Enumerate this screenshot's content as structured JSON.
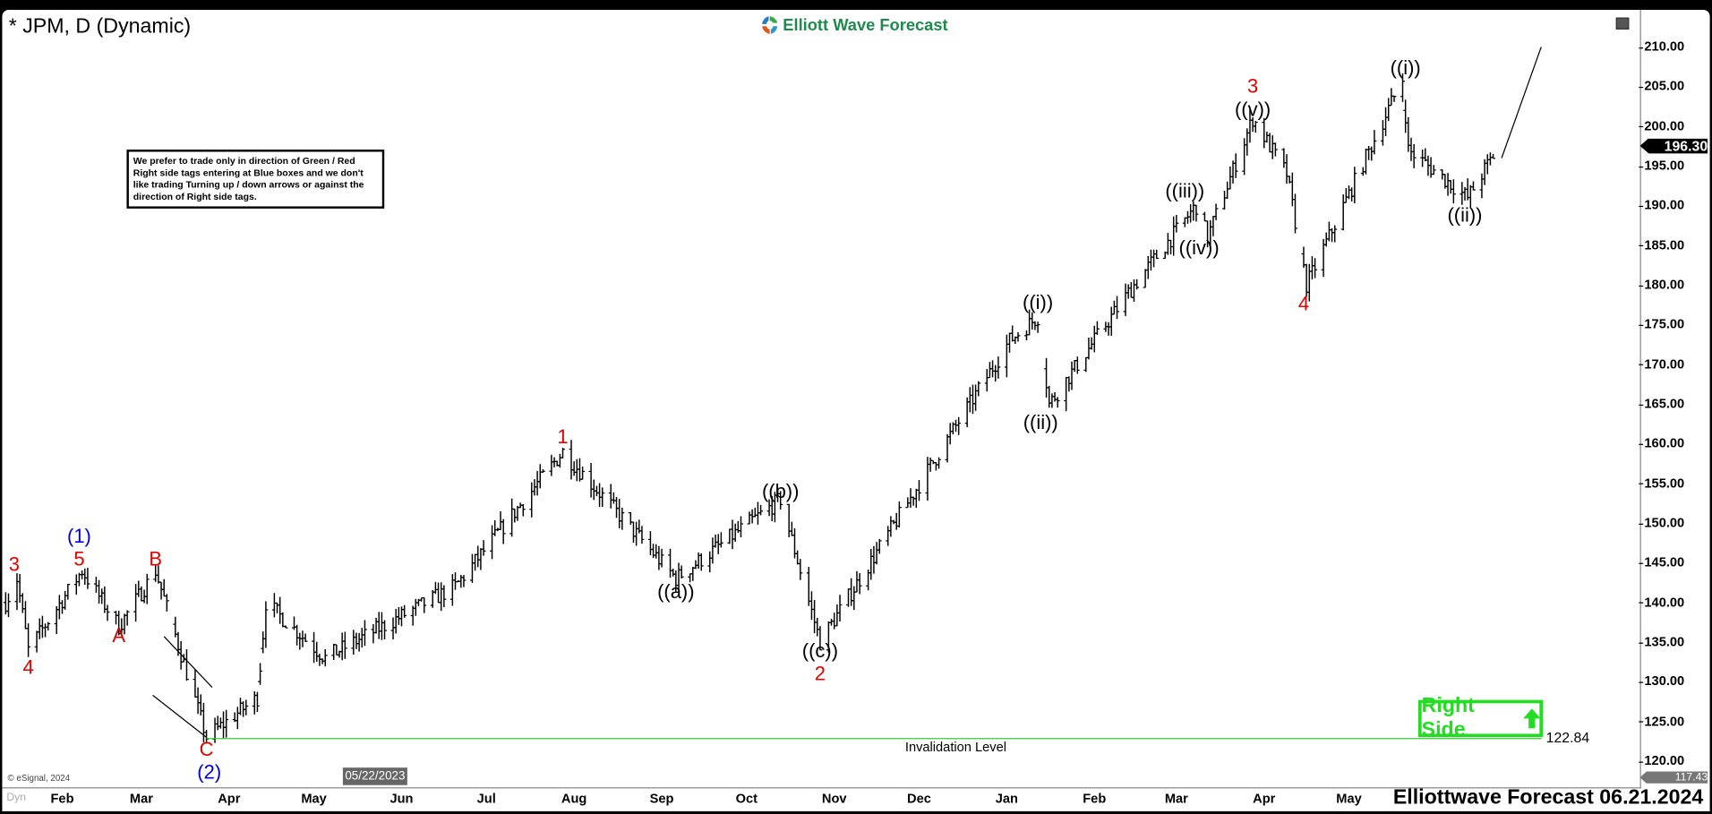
{
  "header": {
    "title": "* JPM, D (Dynamic)",
    "logo_text": "Elliott Wave Forecast"
  },
  "note": "We prefer to trade only in direction of Green / Red Right side tags entering at Blue boxes and we don't like trading Turning up / down arrows or against the direction of Right side tags.",
  "right_side": {
    "label": "Right Side",
    "icon": "arrow-up-icon",
    "color": "#22dd22"
  },
  "invalidation": {
    "label": "Invalidation Level",
    "value": "122.84",
    "price": 122.84,
    "color": "#33cc33"
  },
  "last_price": "196.30",
  "low_price": "117.43",
  "cursor_date": "05/22/2023",
  "footer": "Elliottwave Forecast 06.21.2024",
  "copyright": "© eSignal, 2024",
  "dyn_label": "Dyn",
  "chart_data": {
    "type": "ohlc-bar",
    "symbol": "JPM",
    "interval": "D",
    "ylim": [
      117.43,
      213
    ],
    "y_ticks": [
      "120.00",
      "125.00",
      "130.00",
      "135.00",
      "140.00",
      "145.00",
      "150.00",
      "155.00",
      "160.00",
      "165.00",
      "170.00",
      "175.00",
      "180.00",
      "185.00",
      "190.00",
      "195.00",
      "200.00",
      "205.00",
      "210.00"
    ],
    "x_ticks": [
      {
        "label": "Feb",
        "date": "2023-02-01"
      },
      {
        "label": "Mar",
        "date": "2023-03-01"
      },
      {
        "label": "Apr",
        "date": "2023-04-01"
      },
      {
        "label": "May",
        "date": "2023-05-01"
      },
      {
        "label": "Jun",
        "date": "2023-06-01"
      },
      {
        "label": "Jul",
        "date": "2023-07-01"
      },
      {
        "label": "Aug",
        "date": "2023-08-01"
      },
      {
        "label": "Sep",
        "date": "2023-09-01"
      },
      {
        "label": "Oct",
        "date": "2023-10-01"
      },
      {
        "label": "Nov",
        "date": "2023-11-01"
      },
      {
        "label": "Dec",
        "date": "2023-12-01"
      },
      {
        "label": "Jan",
        "date": "2024-01-01"
      },
      {
        "label": "Feb",
        "date": "2024-02-01"
      },
      {
        "label": "Mar",
        "date": "2024-03-01"
      },
      {
        "label": "Apr",
        "date": "2024-04-01"
      },
      {
        "label": "May",
        "date": "2024-05-01"
      }
    ],
    "price_path": [
      [
        "2023-01-12",
        140
      ],
      [
        "2023-01-16",
        143
      ],
      [
        "2023-01-20",
        134
      ],
      [
        "2023-02-08",
        144
      ],
      [
        "2023-02-21",
        137
      ],
      [
        "2023-03-06",
        144
      ],
      [
        "2023-03-24",
        123
      ],
      [
        "2023-04-11",
        128
      ],
      [
        "2023-04-14",
        140
      ],
      [
        "2023-05-05",
        133
      ],
      [
        "2023-06-20",
        142
      ],
      [
        "2023-07-28",
        159
      ],
      [
        "2023-09-06",
        143
      ],
      [
        "2023-10-13",
        153
      ],
      [
        "2023-10-27",
        135
      ],
      [
        "2024-01-02",
        173
      ],
      [
        "2024-01-12",
        176
      ],
      [
        "2024-01-16",
        165
      ],
      [
        "2024-02-15",
        180
      ],
      [
        "2024-03-08",
        190
      ],
      [
        "2024-03-12",
        186
      ],
      [
        "2024-03-28",
        201
      ],
      [
        "2024-04-09",
        194
      ],
      [
        "2024-04-12",
        188
      ],
      [
        "2024-04-16",
        180
      ],
      [
        "2024-05-20",
        206
      ],
      [
        "2024-05-22",
        197
      ],
      [
        "2024-06-12",
        191
      ],
      [
        "2024-06-21",
        196.3
      ]
    ],
    "projection": [
      [
        "2024-06-24",
        196
      ],
      [
        "2024-07-08",
        210
      ]
    ],
    "wedge": [
      [
        [
          "2023-03-09",
          135.7
        ],
        [
          "2023-03-26",
          129.3
        ]
      ],
      [
        [
          "2023-03-05",
          128.3
        ],
        [
          "2023-03-24",
          123.0
        ]
      ]
    ],
    "wave_labels": [
      {
        "text": "3",
        "color": "#e00000",
        "date": "2023-01-15",
        "price": 144.8
      },
      {
        "text": "4",
        "color": "#e00000",
        "date": "2023-01-20",
        "price": 131.8
      },
      {
        "text": "(1)",
        "color": "#0000dd",
        "date": "2023-02-07",
        "price": 148.1
      },
      {
        "text": "5",
        "color": "#e00000",
        "date": "2023-02-07",
        "price": 145.6
      },
      {
        "text": "A",
        "color": "#e00000",
        "date": "2023-02-21",
        "price": 135.8
      },
      {
        "text": "B",
        "color": "#e00000",
        "date": "2023-03-06",
        "price": 145.5
      },
      {
        "text": "C",
        "color": "#e00000",
        "date": "2023-03-24",
        "price": 121.2
      },
      {
        "text": "(2)",
        "color": "#0000dd",
        "date": "2023-03-25",
        "price": 118.9
      },
      {
        "text": "1",
        "color": "#e00000",
        "date": "2023-07-28",
        "price": 160.9
      },
      {
        "text": "((a))",
        "color": "#000000",
        "date": "2023-09-06",
        "price": 141.3
      },
      {
        "text": "((b))",
        "color": "#000000",
        "date": "2023-10-13",
        "price": 154.0
      },
      {
        "text": "((c))",
        "color": "#000000",
        "date": "2023-10-27",
        "price": 133.8
      },
      {
        "text": "2",
        "color": "#e00000",
        "date": "2023-10-27",
        "price": 131.1
      },
      {
        "text": "((i))",
        "color": "#000000",
        "date": "2024-01-12",
        "price": 177.8
      },
      {
        "text": "((ii))",
        "color": "#000000",
        "date": "2024-01-13",
        "price": 162.7
      },
      {
        "text": "((iii))",
        "color": "#000000",
        "date": "2024-03-04",
        "price": 191.8
      },
      {
        "text": "((iv))",
        "color": "#000000",
        "date": "2024-03-09",
        "price": 184.7
      },
      {
        "text": "3",
        "color": "#e00000",
        "date": "2024-03-28",
        "price": 204.8
      },
      {
        "text": "((v))",
        "color": "#000000",
        "date": "2024-03-28",
        "price": 202.3
      },
      {
        "text": "4",
        "color": "#e00000",
        "date": "2024-04-15",
        "price": 177.7
      },
      {
        "text": "((i))",
        "color": "#000000",
        "date": "2024-05-21",
        "price": 207.4
      },
      {
        "text": "((ii))",
        "color": "#000000",
        "date": "2024-06-11",
        "price": 188.8
      }
    ]
  }
}
